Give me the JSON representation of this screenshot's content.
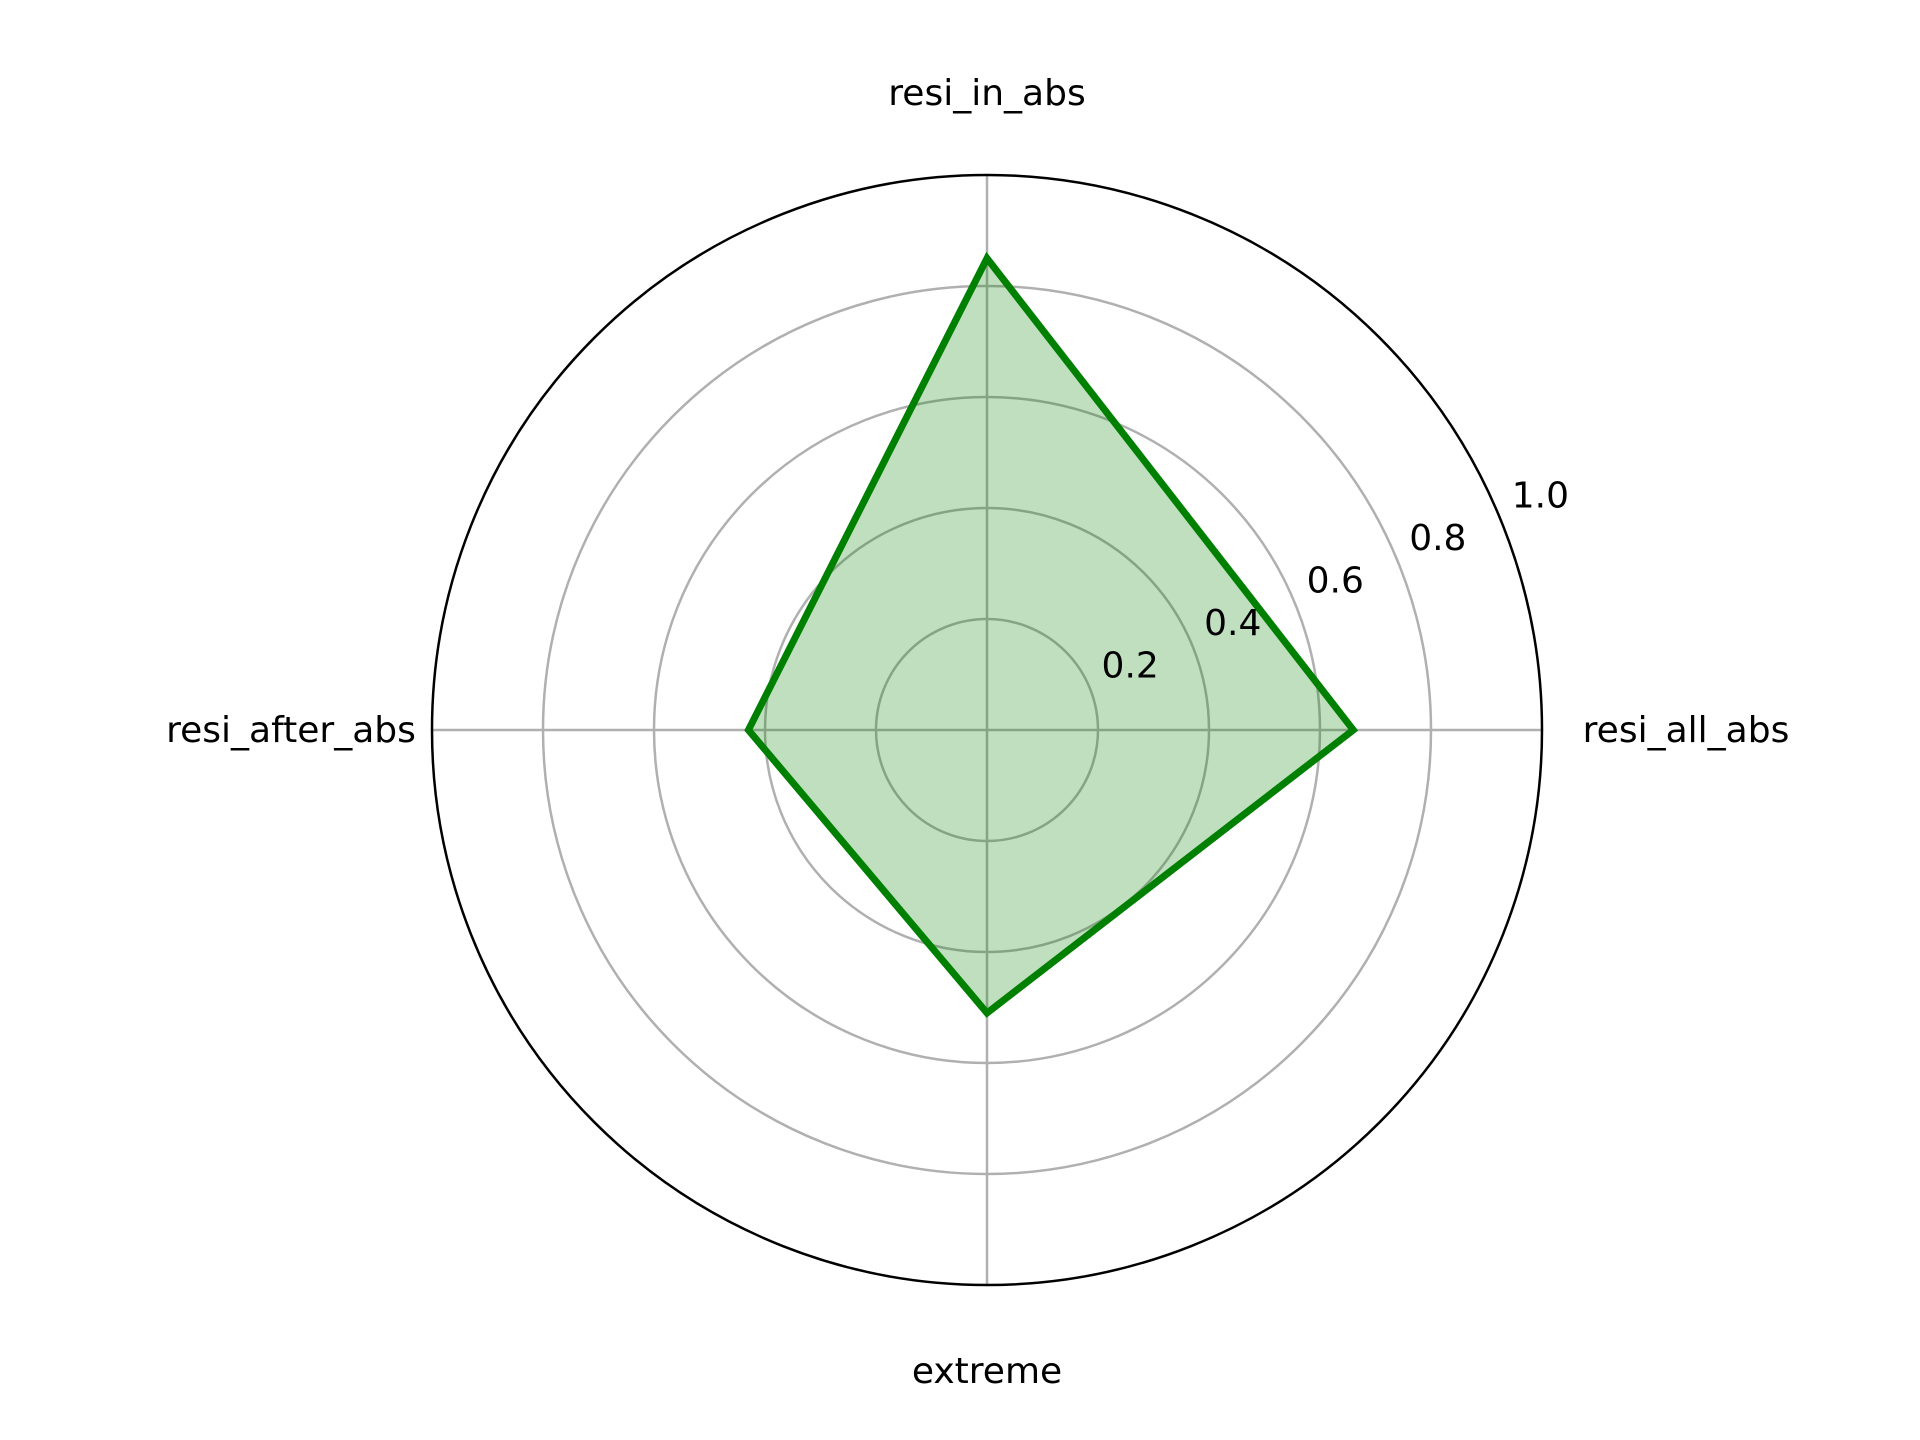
{
  "chart_data": {
    "type": "radar",
    "categories": [
      "resi_all_abs",
      "resi_in_abs",
      "resi_after_abs",
      "extreme"
    ],
    "series": [
      {
        "values": [
          0.66,
          0.85,
          0.43,
          0.51
        ],
        "line_color": "#008000",
        "fill_color": "#008000",
        "fill_opacity": 0.25
      }
    ],
    "r_ticks": [
      0.2,
      0.4,
      0.6,
      0.8,
      1.0
    ],
    "r_tick_labels": [
      "0.2",
      "0.4",
      "0.6",
      "0.8",
      "1.0"
    ],
    "rlim": [
      0,
      1.0
    ],
    "grid": true,
    "title": "",
    "legend": false
  }
}
